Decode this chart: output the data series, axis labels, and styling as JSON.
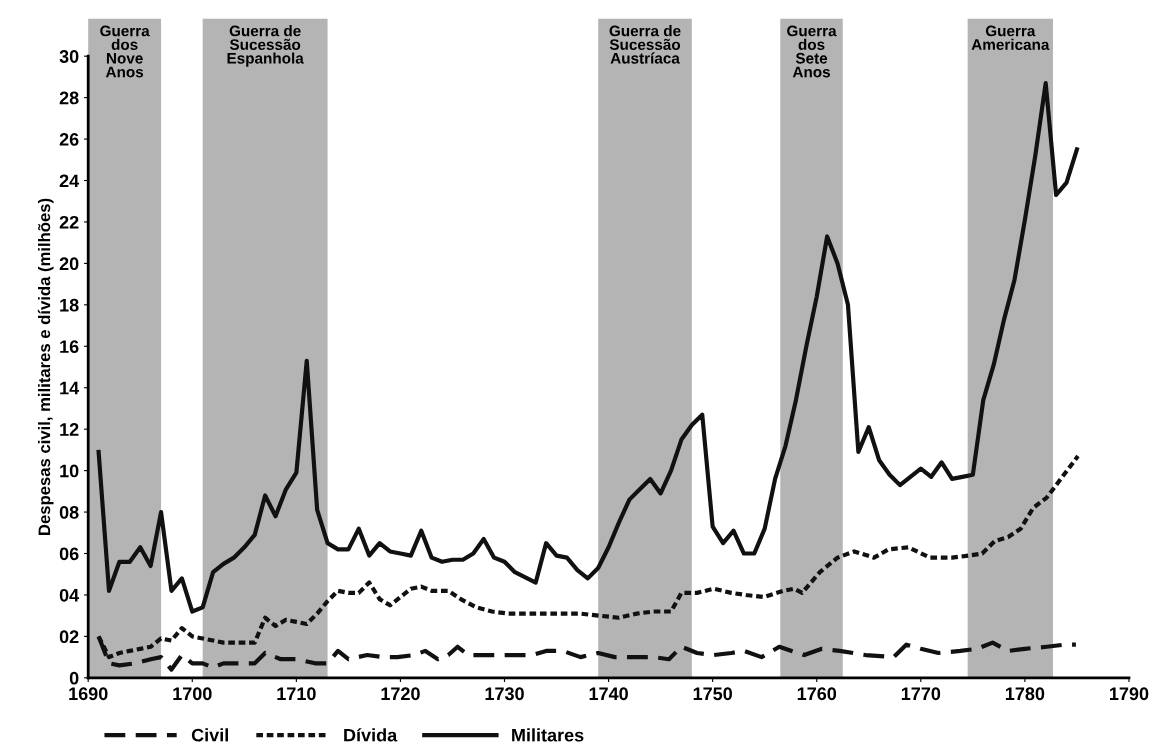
{
  "chart_data": {
    "type": "line",
    "ylabel": "Despesas civil, militares e dívida (milhões)",
    "xlim": [
      1690,
      1790
    ],
    "xticks": [
      1690,
      1700,
      1710,
      1720,
      1730,
      1740,
      1750,
      1760,
      1770,
      1780,
      1790
    ],
    "ylim": [
      0,
      30
    ],
    "yticks": [
      0,
      {
        "value": 2,
        "label": "02"
      },
      {
        "value": 4,
        "label": "04"
      },
      {
        "value": 6,
        "label": "06"
      },
      {
        "value": 8,
        "label": "08"
      },
      10,
      12,
      14,
      16,
      18,
      20,
      22,
      24,
      26,
      28,
      30
    ],
    "grid": false,
    "legend": "bottom left",
    "marker": "none",
    "bands": [
      {
        "axis": "x",
        "from": 1690,
        "to": 1697,
        "label": "Guerra\ndos\nNove\nAnos",
        "color": "#b4b4b4"
      },
      {
        "axis": "x",
        "from": 1701,
        "to": 1713,
        "label": "Guerra de\nSucessão\nEspanhola",
        "color": "#b4b4b4"
      },
      {
        "axis": "x",
        "from": 1739,
        "to": 1748,
        "label": "Guerra de\nSucessão\nAustríaca",
        "color": "#b4b4b4"
      },
      {
        "axis": "x",
        "from": 1756.5,
        "to": 1762.5,
        "label": "Guerra\ndos\nSete\nAnos",
        "color": "#b4b4b4"
      },
      {
        "axis": "x",
        "from": 1774.5,
        "to": 1782.7,
        "label": "Guerra\nAmericana",
        "color": "#b4b4b4"
      }
    ],
    "series": [
      {
        "name": "Civil",
        "color": "#111111",
        "line_style": "dashed",
        "x": [
          1691,
          1692,
          1693,
          1694.5,
          1696,
          1697,
          1698,
          1699,
          1700,
          1701,
          1702,
          1703,
          1705,
          1706,
          1707,
          1708.5,
          1710,
          1711.8,
          1713,
          1714,
          1715,
          1716.8,
          1718.4,
          1719.7,
          1721.3,
          1722.4,
          1723.6,
          1724.6,
          1725.5,
          1726.5,
          1728.5,
          1730.6,
          1732.7,
          1734,
          1735.6,
          1737.3,
          1739,
          1740.6,
          1742.7,
          1744.3,
          1745.8,
          1747,
          1748.5,
          1750.1,
          1751.8,
          1753,
          1754.7,
          1756.4,
          1757.6,
          1758.8,
          1760.5,
          1762.2,
          1764.7,
          1767.4,
          1768.6,
          1770,
          1771.7,
          1773.8,
          1775.4,
          1776.9,
          1778.4,
          1780,
          1782.1,
          1783.8,
          1784.9
        ],
        "values": [
          2.0,
          0.7,
          0.6,
          0.7,
          0.9,
          1.0,
          0.4,
          1.1,
          0.7,
          0.7,
          0.5,
          0.7,
          0.7,
          0.7,
          1.2,
          0.9,
          0.9,
          0.7,
          0.7,
          1.3,
          0.9,
          1.1,
          1.0,
          1.0,
          1.1,
          1.3,
          0.9,
          1.1,
          1.5,
          1.1,
          1.1,
          1.1,
          1.1,
          1.3,
          1.3,
          1.0,
          1.2,
          1.0,
          1.0,
          1.0,
          0.9,
          1.5,
          1.2,
          1.1,
          1.2,
          1.3,
          1.0,
          1.5,
          1.3,
          1.1,
          1.4,
          1.3,
          1.1,
          1.0,
          1.6,
          1.4,
          1.2,
          1.3,
          1.4,
          1.7,
          1.3,
          1.4,
          1.5,
          1.6,
          1.6
        ]
      },
      {
        "name": "Dívida",
        "color": "#111111",
        "line_style": "dotted",
        "x": [
          1691,
          1692,
          1693,
          1694,
          1695,
          1696,
          1697,
          1698,
          1699,
          1700,
          1701,
          1702,
          1703,
          1704,
          1705,
          1706,
          1707,
          1708,
          1709,
          1710,
          1711,
          1712,
          1713,
          1714,
          1715,
          1716,
          1717,
          1718,
          1719,
          1720,
          1721,
          1722,
          1723,
          1724.6,
          1725.8,
          1727.3,
          1728.8,
          1730.4,
          1732.1,
          1734,
          1735.6,
          1737.3,
          1739.1,
          1741,
          1742.7,
          1744.3,
          1746,
          1747,
          1748.5,
          1750.1,
          1751.8,
          1753.2,
          1754.9,
          1756.8,
          1757.8,
          1758.6,
          1760.3,
          1762,
          1763.6,
          1765.5,
          1766.9,
          1768.8,
          1770.9,
          1773,
          1774.6,
          1775.9,
          1777.1,
          1778.4,
          1779.6,
          1780.8,
          1782.1,
          1783.3,
          1785.1
        ],
        "values": [
          2.0,
          1.0,
          1.2,
          1.3,
          1.4,
          1.5,
          1.9,
          1.8,
          2.4,
          2.0,
          1.9,
          1.8,
          1.7,
          1.7,
          1.7,
          1.7,
          2.9,
          2.5,
          2.8,
          2.7,
          2.6,
          3.1,
          3.7,
          4.2,
          4.1,
          4.1,
          4.6,
          3.8,
          3.5,
          3.9,
          4.3,
          4.4,
          4.2,
          4.2,
          3.8,
          3.4,
          3.2,
          3.1,
          3.1,
          3.1,
          3.1,
          3.1,
          3.0,
          2.9,
          3.1,
          3.2,
          3.2,
          4.1,
          4.1,
          4.3,
          4.1,
          4.0,
          3.9,
          4.2,
          4.3,
          4.1,
          5.1,
          5.8,
          6.1,
          5.8,
          6.2,
          6.3,
          5.8,
          5.8,
          5.9,
          6.0,
          6.6,
          6.8,
          7.2,
          8.2,
          8.7,
          9.5,
          10.7
        ]
      },
      {
        "name": "Militares",
        "color": "#111111",
        "line_style": "solid",
        "x": [
          1691,
          1692,
          1693,
          1694,
          1695,
          1696,
          1697,
          1698,
          1699,
          1700,
          1701,
          1702,
          1703,
          1704,
          1705,
          1706,
          1707,
          1708,
          1709,
          1710,
          1711,
          1712,
          1713,
          1714,
          1715,
          1716,
          1717,
          1718,
          1719,
          1720,
          1721,
          1722,
          1723,
          1724,
          1725,
          1726,
          1727,
          1728,
          1729,
          1730,
          1731,
          1733,
          1734,
          1735,
          1736,
          1737,
          1738,
          1739,
          1740,
          1741,
          1742,
          1743,
          1744,
          1745,
          1746,
          1747,
          1748,
          1749,
          1750,
          1751,
          1752,
          1753,
          1754,
          1755,
          1756,
          1757,
          1758,
          1759,
          1760,
          1761,
          1762,
          1763,
          1764,
          1765,
          1766,
          1767,
          1768,
          1769,
          1770,
          1771,
          1772,
          1773,
          1774,
          1775,
          1776,
          1777,
          1778,
          1779,
          1780,
          1781,
          1782,
          1783,
          1784,
          1785
        ],
        "values": [
          10.9,
          4.2,
          5.6,
          5.6,
          6.3,
          5.4,
          8.0,
          4.2,
          4.8,
          3.2,
          3.4,
          5.1,
          5.5,
          5.8,
          6.3,
          6.9,
          8.8,
          7.8,
          9.1,
          9.9,
          15.3,
          8.1,
          6.5,
          6.2,
          6.2,
          7.2,
          5.9,
          6.5,
          6.1,
          6.0,
          5.9,
          7.1,
          5.8,
          5.6,
          5.7,
          5.7,
          6.0,
          6.7,
          5.8,
          5.6,
          5.1,
          4.6,
          6.5,
          5.9,
          5.8,
          5.2,
          4.8,
          5.3,
          6.3,
          7.5,
          8.6,
          9.1,
          9.6,
          8.9,
          10.0,
          11.5,
          12.2,
          12.7,
          7.3,
          6.5,
          7.1,
          6.0,
          6.0,
          7.2,
          9.6,
          11.2,
          13.4,
          16.0,
          18.4,
          21.3,
          20.0,
          18.0,
          10.9,
          12.1,
          10.5,
          9.8,
          9.3,
          9.7,
          10.1,
          9.7,
          10.4,
          9.6,
          9.7,
          9.8,
          13.4,
          15.1,
          17.3,
          19.2,
          22.1,
          25.2,
          28.7,
          23.3,
          23.9,
          25.5
        ]
      }
    ]
  }
}
